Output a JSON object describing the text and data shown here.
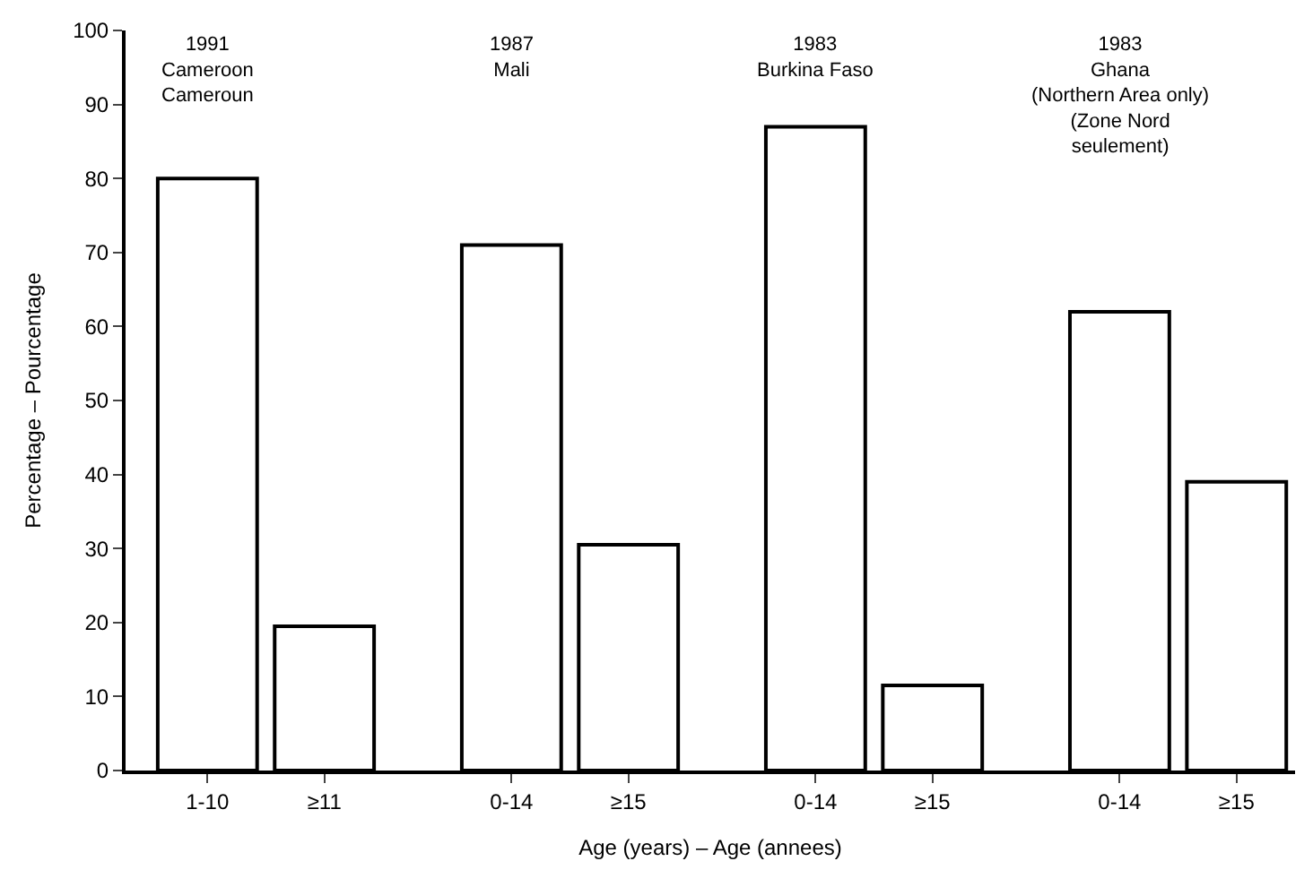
{
  "chart_data": {
    "type": "bar",
    "categories": [
      "1-10",
      "≥11",
      "0-14",
      "≥15",
      "0-14",
      "≥15",
      "0-14",
      "≥15"
    ],
    "values": [
      80,
      19.5,
      71,
      30.5,
      87,
      11.5,
      62,
      39
    ],
    "color": "#ffffff",
    "xlabel": "Age (years) – Age (annees)",
    "ylabel": "Percentage – Pourcentage",
    "ylim": [
      0,
      100
    ],
    "yticks": [
      0,
      10,
      20,
      30,
      40,
      50,
      60,
      70,
      80,
      90,
      100
    ],
    "annotations": [
      "1991\nCameroon\nCameroun",
      "1987\nMali",
      "1983\nBurkina Faso",
      "1983\nGhana\n(Northern Area only)\n(Zone Nord\nseulement)"
    ]
  }
}
